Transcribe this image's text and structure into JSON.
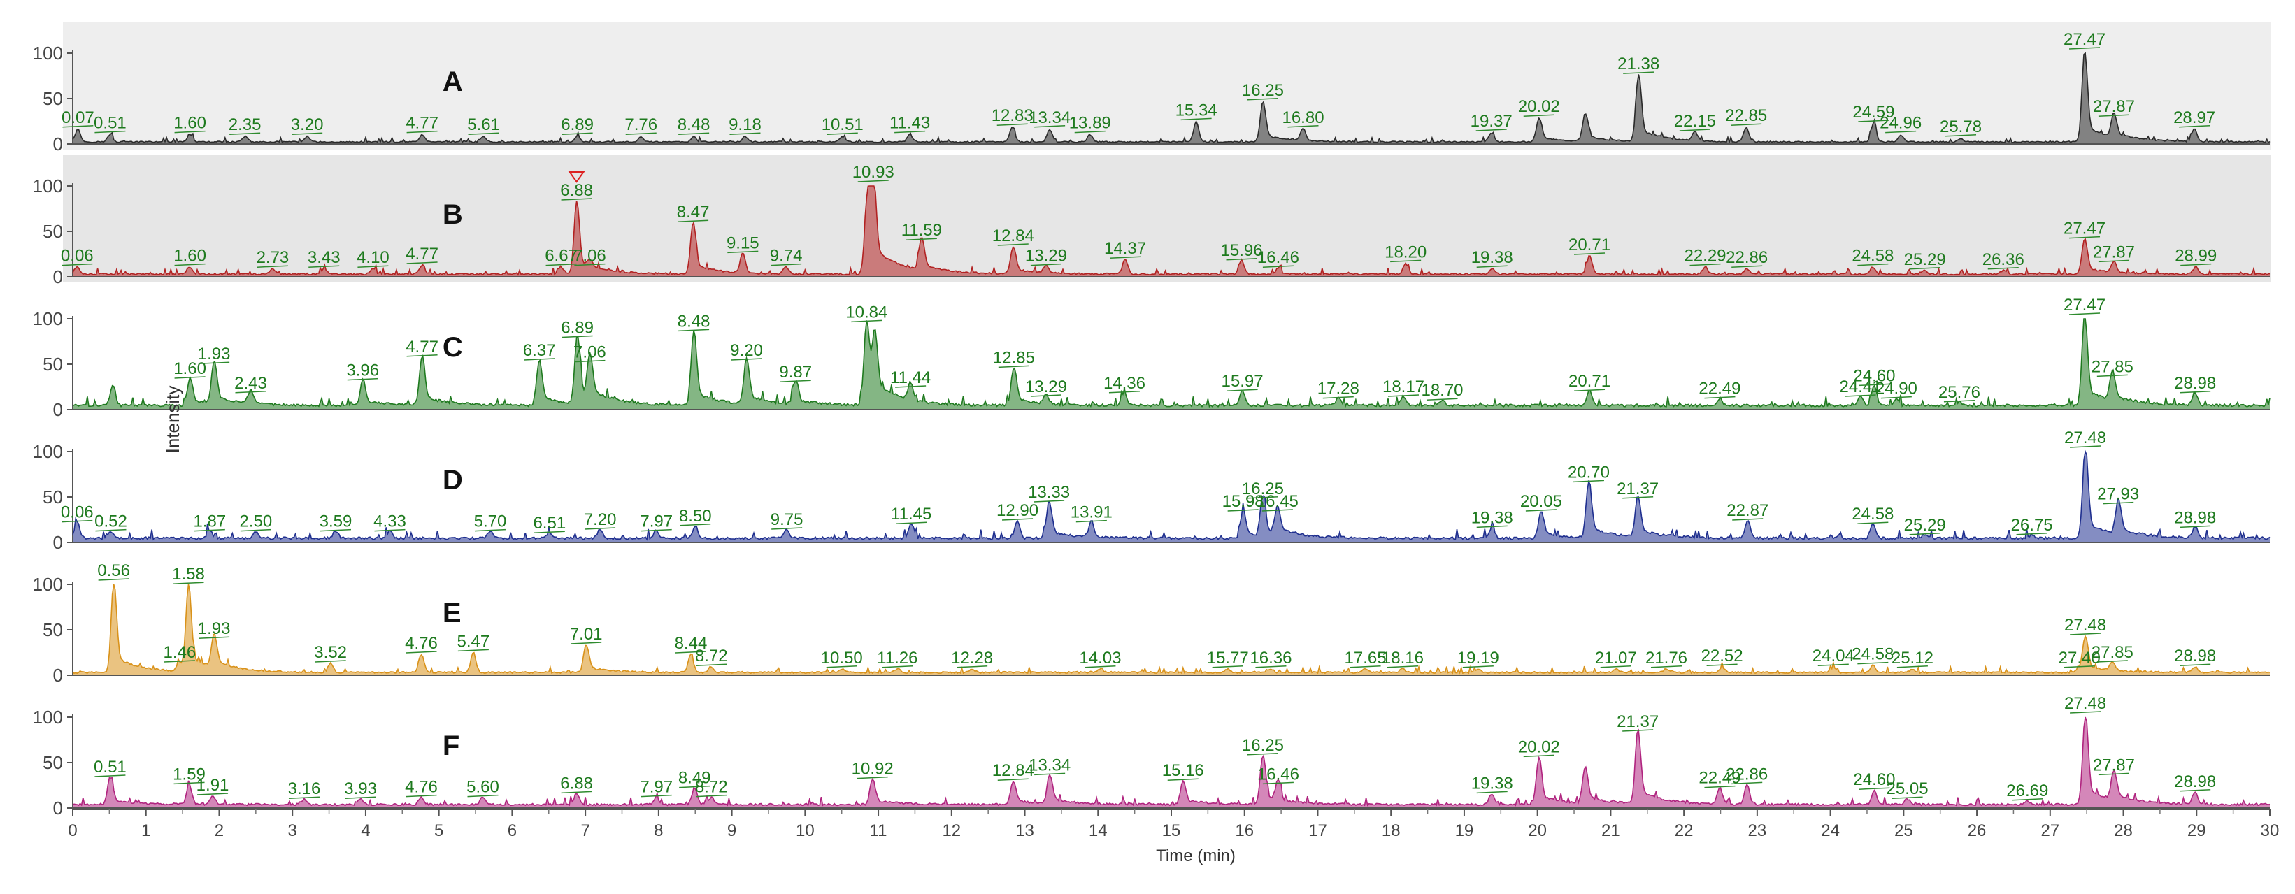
{
  "chart_data": {
    "type": "line",
    "xlabel": "Time (min)",
    "ylabel": "Intensity",
    "xlim": [
      0,
      30
    ],
    "ylim": [
      0,
      100
    ],
    "x_ticks": [
      0,
      1,
      2,
      3,
      4,
      5,
      6,
      7,
      8,
      9,
      10,
      11,
      12,
      13,
      14,
      15,
      16,
      17,
      18,
      19,
      20,
      21,
      22,
      23,
      24,
      25,
      26,
      27,
      28,
      29,
      30
    ],
    "y_ticks": [
      0,
      50,
      100
    ],
    "grid": false,
    "legend": "none",
    "series": [
      {
        "name": "A",
        "color": "#2a2a2a",
        "background": "#eeeeee",
        "baseline": 3,
        "peaks": [
          {
            "t": 0.07,
            "h": 14,
            "label": "0.07"
          },
          {
            "t": 0.51,
            "h": 8,
            "label": "0.51"
          },
          {
            "t": 1.6,
            "h": 8,
            "label": "1.60"
          },
          {
            "t": 2.35,
            "h": 6,
            "label": "2.35"
          },
          {
            "t": 3.2,
            "h": 6,
            "label": "3.20"
          },
          {
            "t": 4.77,
            "h": 8,
            "label": "4.77"
          },
          {
            "t": 5.61,
            "h": 6,
            "label": "5.61"
          },
          {
            "t": 6.89,
            "h": 6,
            "label": "6.89"
          },
          {
            "t": 7.76,
            "h": 6,
            "label": "7.76"
          },
          {
            "t": 8.48,
            "h": 6,
            "label": "8.48"
          },
          {
            "t": 9.18,
            "h": 6,
            "label": "9.18"
          },
          {
            "t": 10.51,
            "h": 6,
            "label": "10.51"
          },
          {
            "t": 11.43,
            "h": 8,
            "label": "11.43"
          },
          {
            "t": 12.83,
            "h": 16,
            "label": "12.83"
          },
          {
            "t": 13.34,
            "h": 14,
            "label": "13.34"
          },
          {
            "t": 13.89,
            "h": 8,
            "label": "13.89"
          },
          {
            "t": 15.34,
            "h": 22,
            "label": "15.34"
          },
          {
            "t": 16.25,
            "h": 44,
            "label": "16.25"
          },
          {
            "t": 16.8,
            "h": 14,
            "label": "16.80"
          },
          {
            "t": 19.37,
            "h": 10,
            "label": "19.37"
          },
          {
            "t": 20.02,
            "h": 26,
            "label": "20.02"
          },
          {
            "t": 20.65,
            "h": 30,
            "label": ""
          },
          {
            "t": 21.38,
            "h": 73,
            "label": "21.38"
          },
          {
            "t": 22.15,
            "h": 10,
            "label": "22.15"
          },
          {
            "t": 22.85,
            "h": 16,
            "label": "22.85"
          },
          {
            "t": 24.59,
            "h": 20,
            "label": "24.59"
          },
          {
            "t": 24.96,
            "h": 8,
            "label": "24.96"
          },
          {
            "t": 25.78,
            "h": 4,
            "label": "25.78"
          },
          {
            "t": 27.47,
            "h": 100,
            "label": "27.47"
          },
          {
            "t": 27.87,
            "h": 26,
            "label": "27.87"
          },
          {
            "t": 28.97,
            "h": 14,
            "label": "28.97"
          }
        ]
      },
      {
        "name": "B",
        "color": "#b22222",
        "background": "#e6e6e6",
        "baseline": 4,
        "marker_at": 6.88,
        "peaks": [
          {
            "t": 0.06,
            "h": 8,
            "label": "0.06"
          },
          {
            "t": 1.6,
            "h": 8,
            "label": "1.60"
          },
          {
            "t": 2.73,
            "h": 6,
            "label": "2.73"
          },
          {
            "t": 3.43,
            "h": 6,
            "label": "3.43"
          },
          {
            "t": 4.1,
            "h": 6,
            "label": "4.10"
          },
          {
            "t": 4.77,
            "h": 10,
            "label": "4.77"
          },
          {
            "t": 6.67,
            "h": 8,
            "label": "6.67"
          },
          {
            "t": 6.88,
            "h": 80,
            "label": "6.88"
          },
          {
            "t": 7.06,
            "h": 8,
            "label": "7.06"
          },
          {
            "t": 8.47,
            "h": 56,
            "label": "8.47"
          },
          {
            "t": 9.15,
            "h": 22,
            "label": "9.15"
          },
          {
            "t": 9.74,
            "h": 8,
            "label": "9.74"
          },
          {
            "t": 10.85,
            "h": 84,
            "label": ""
          },
          {
            "t": 10.93,
            "h": 100,
            "label": "10.93"
          },
          {
            "t": 11.59,
            "h": 36,
            "label": "11.59"
          },
          {
            "t": 12.84,
            "h": 30,
            "label": "12.84"
          },
          {
            "t": 13.29,
            "h": 8,
            "label": "13.29"
          },
          {
            "t": 14.37,
            "h": 16,
            "label": "14.37"
          },
          {
            "t": 15.96,
            "h": 14,
            "label": "15.96"
          },
          {
            "t": 16.46,
            "h": 6,
            "label": "16.46"
          },
          {
            "t": 18.2,
            "h": 12,
            "label": "18.20"
          },
          {
            "t": 19.38,
            "h": 6,
            "label": "19.38"
          },
          {
            "t": 20.71,
            "h": 20,
            "label": "20.71"
          },
          {
            "t": 22.29,
            "h": 8,
            "label": "22.29"
          },
          {
            "t": 22.86,
            "h": 6,
            "label": "22.86"
          },
          {
            "t": 24.58,
            "h": 8,
            "label": "24.58"
          },
          {
            "t": 25.29,
            "h": 4,
            "label": "25.29"
          },
          {
            "t": 26.36,
            "h": 4,
            "label": "26.36"
          },
          {
            "t": 27.47,
            "h": 38,
            "label": "27.47"
          },
          {
            "t": 27.87,
            "h": 12,
            "label": "27.87"
          },
          {
            "t": 28.99,
            "h": 8,
            "label": "28.99"
          }
        ]
      },
      {
        "name": "C",
        "color": "#1f7a1f",
        "background": "#ffffff",
        "baseline": 6,
        "peaks": [
          {
            "t": 0.55,
            "h": 22,
            "label": ""
          },
          {
            "t": 1.6,
            "h": 30,
            "label": "1.60"
          },
          {
            "t": 1.93,
            "h": 46,
            "label": "1.93"
          },
          {
            "t": 2.43,
            "h": 14,
            "label": "2.43"
          },
          {
            "t": 3.96,
            "h": 28,
            "label": "3.96"
          },
          {
            "t": 4.77,
            "h": 54,
            "label": "4.77"
          },
          {
            "t": 6.37,
            "h": 50,
            "label": "6.37"
          },
          {
            "t": 6.89,
            "h": 75,
            "label": "6.89"
          },
          {
            "t": 7.06,
            "h": 48,
            "label": "7.06"
          },
          {
            "t": 8.48,
            "h": 82,
            "label": "8.48"
          },
          {
            "t": 9.2,
            "h": 50,
            "label": "9.20"
          },
          {
            "t": 9.87,
            "h": 26,
            "label": "9.87"
          },
          {
            "t": 10.84,
            "h": 92,
            "label": "10.84"
          },
          {
            "t": 10.95,
            "h": 70,
            "label": ""
          },
          {
            "t": 11.44,
            "h": 20,
            "label": "11.44"
          },
          {
            "t": 12.85,
            "h": 42,
            "label": "12.85"
          },
          {
            "t": 13.29,
            "h": 10,
            "label": "13.29"
          },
          {
            "t": 14.36,
            "h": 14,
            "label": "14.36"
          },
          {
            "t": 15.97,
            "h": 16,
            "label": "15.97"
          },
          {
            "t": 17.28,
            "h": 8,
            "label": "17.28"
          },
          {
            "t": 18.17,
            "h": 10,
            "label": "18.17"
          },
          {
            "t": 18.7,
            "h": 6,
            "label": "18.70"
          },
          {
            "t": 20.71,
            "h": 16,
            "label": "20.71"
          },
          {
            "t": 22.49,
            "h": 8,
            "label": "22.49"
          },
          {
            "t": 24.41,
            "h": 10,
            "label": "24.41"
          },
          {
            "t": 24.6,
            "h": 22,
            "label": "24.60"
          },
          {
            "t": 24.9,
            "h": 8,
            "label": "24.90"
          },
          {
            "t": 25.76,
            "h": 4,
            "label": "25.76"
          },
          {
            "t": 27.47,
            "h": 100,
            "label": "27.47"
          },
          {
            "t": 27.85,
            "h": 32,
            "label": "27.85"
          },
          {
            "t": 28.98,
            "h": 14,
            "label": "28.98"
          }
        ]
      },
      {
        "name": "D",
        "color": "#1f2f8f",
        "background": "#ffffff",
        "baseline": 6,
        "peaks": [
          {
            "t": 0.06,
            "h": 18,
            "label": "0.06"
          },
          {
            "t": 0.52,
            "h": 8,
            "label": "0.52"
          },
          {
            "t": 1.87,
            "h": 8,
            "label": "1.87"
          },
          {
            "t": 2.5,
            "h": 8,
            "label": "2.50"
          },
          {
            "t": 3.59,
            "h": 8,
            "label": "3.59"
          },
          {
            "t": 4.33,
            "h": 8,
            "label": "4.33"
          },
          {
            "t": 5.7,
            "h": 8,
            "label": "5.70"
          },
          {
            "t": 6.51,
            "h": 6,
            "label": "6.51"
          },
          {
            "t": 7.2,
            "h": 10,
            "label": "7.20"
          },
          {
            "t": 7.97,
            "h": 8,
            "label": "7.97"
          },
          {
            "t": 8.5,
            "h": 14,
            "label": "8.50"
          },
          {
            "t": 9.75,
            "h": 10,
            "label": "9.75"
          },
          {
            "t": 11.45,
            "h": 16,
            "label": "11.45"
          },
          {
            "t": 12.9,
            "h": 20,
            "label": "12.90"
          },
          {
            "t": 13.33,
            "h": 40,
            "label": "13.33"
          },
          {
            "t": 13.91,
            "h": 18,
            "label": "13.91"
          },
          {
            "t": 15.98,
            "h": 30,
            "label": "15.98"
          },
          {
            "t": 16.25,
            "h": 44,
            "label": "16.25"
          },
          {
            "t": 16.45,
            "h": 30,
            "label": "16.45"
          },
          {
            "t": 19.38,
            "h": 12,
            "label": "19.38"
          },
          {
            "t": 20.05,
            "h": 30,
            "label": "20.05"
          },
          {
            "t": 20.7,
            "h": 62,
            "label": "20.70"
          },
          {
            "t": 21.37,
            "h": 44,
            "label": "21.37"
          },
          {
            "t": 22.87,
            "h": 20,
            "label": "22.87"
          },
          {
            "t": 24.58,
            "h": 16,
            "label": "24.58"
          },
          {
            "t": 25.29,
            "h": 4,
            "label": "25.29"
          },
          {
            "t": 26.75,
            "h": 4,
            "label": "26.75"
          },
          {
            "t": 27.48,
            "h": 100,
            "label": "27.48"
          },
          {
            "t": 27.93,
            "h": 38,
            "label": "27.93"
          },
          {
            "t": 28.98,
            "h": 12,
            "label": "28.98"
          }
        ]
      },
      {
        "name": "E",
        "color": "#d9921a",
        "background": "#ffffff",
        "baseline": 4,
        "peaks": [
          {
            "t": 0.56,
            "h": 100,
            "label": "0.56"
          },
          {
            "t": 1.46,
            "h": 10,
            "label": "1.46"
          },
          {
            "t": 1.58,
            "h": 96,
            "label": "1.58"
          },
          {
            "t": 1.93,
            "h": 36,
            "label": "1.93"
          },
          {
            "t": 3.52,
            "h": 10,
            "label": "3.52"
          },
          {
            "t": 4.76,
            "h": 20,
            "label": "4.76"
          },
          {
            "t": 5.47,
            "h": 22,
            "label": "5.47"
          },
          {
            "t": 7.01,
            "h": 30,
            "label": "7.01"
          },
          {
            "t": 8.44,
            "h": 20,
            "label": "8.44"
          },
          {
            "t": 8.72,
            "h": 6,
            "label": "8.72"
          },
          {
            "t": 10.5,
            "h": 4,
            "label": "10.50"
          },
          {
            "t": 11.26,
            "h": 4,
            "label": "11.26"
          },
          {
            "t": 12.28,
            "h": 4,
            "label": "12.28"
          },
          {
            "t": 14.03,
            "h": 4,
            "label": "14.03"
          },
          {
            "t": 15.77,
            "h": 4,
            "label": "15.77"
          },
          {
            "t": 16.36,
            "h": 4,
            "label": "16.36"
          },
          {
            "t": 17.65,
            "h": 4,
            "label": "17.65"
          },
          {
            "t": 18.16,
            "h": 4,
            "label": "18.16"
          },
          {
            "t": 19.19,
            "h": 4,
            "label": "19.19"
          },
          {
            "t": 21.07,
            "h": 4,
            "label": "21.07"
          },
          {
            "t": 21.76,
            "h": 4,
            "label": "21.76"
          },
          {
            "t": 22.52,
            "h": 6,
            "label": "22.52"
          },
          {
            "t": 24.04,
            "h": 6,
            "label": "24.04"
          },
          {
            "t": 24.58,
            "h": 8,
            "label": "24.58"
          },
          {
            "t": 25.12,
            "h": 4,
            "label": "25.12"
          },
          {
            "t": 27.4,
            "h": 4,
            "label": "27.40"
          },
          {
            "t": 27.48,
            "h": 40,
            "label": "27.48"
          },
          {
            "t": 27.85,
            "h": 10,
            "label": "27.85"
          },
          {
            "t": 28.98,
            "h": 6,
            "label": "28.98"
          }
        ]
      },
      {
        "name": "F",
        "color": "#b0247f",
        "background": "#ffffff",
        "baseline": 5,
        "peaks": [
          {
            "t": 0.51,
            "h": 30,
            "label": "0.51"
          },
          {
            "t": 1.59,
            "h": 22,
            "label": "1.59"
          },
          {
            "t": 1.91,
            "h": 10,
            "label": "1.91"
          },
          {
            "t": 3.16,
            "h": 6,
            "label": "3.16"
          },
          {
            "t": 3.93,
            "h": 6,
            "label": "3.93"
          },
          {
            "t": 4.76,
            "h": 8,
            "label": "4.76"
          },
          {
            "t": 5.6,
            "h": 8,
            "label": "5.60"
          },
          {
            "t": 6.88,
            "h": 12,
            "label": "6.88"
          },
          {
            "t": 7.97,
            "h": 8,
            "label": "7.97"
          },
          {
            "t": 8.49,
            "h": 18,
            "label": "8.49"
          },
          {
            "t": 8.72,
            "h": 8,
            "label": "8.72"
          },
          {
            "t": 10.92,
            "h": 28,
            "label": "10.92"
          },
          {
            "t": 12.84,
            "h": 26,
            "label": "12.84"
          },
          {
            "t": 13.34,
            "h": 32,
            "label": "13.34"
          },
          {
            "t": 15.16,
            "h": 26,
            "label": "15.16"
          },
          {
            "t": 16.25,
            "h": 54,
            "label": "16.25"
          },
          {
            "t": 16.46,
            "h": 22,
            "label": "16.46"
          },
          {
            "t": 19.38,
            "h": 12,
            "label": "19.38"
          },
          {
            "t": 20.02,
            "h": 52,
            "label": "20.02"
          },
          {
            "t": 20.65,
            "h": 40,
            "label": ""
          },
          {
            "t": 21.37,
            "h": 80,
            "label": "21.37"
          },
          {
            "t": 22.49,
            "h": 18,
            "label": "22.49"
          },
          {
            "t": 22.86,
            "h": 22,
            "label": "22.86"
          },
          {
            "t": 24.6,
            "h": 16,
            "label": "24.60"
          },
          {
            "t": 25.05,
            "h": 6,
            "label": "25.05"
          },
          {
            "t": 26.69,
            "h": 4,
            "label": "26.69"
          },
          {
            "t": 27.48,
            "h": 100,
            "label": "27.48"
          },
          {
            "t": 27.87,
            "h": 32,
            "label": "27.87"
          },
          {
            "t": 28.98,
            "h": 14,
            "label": "28.98"
          }
        ]
      }
    ]
  }
}
